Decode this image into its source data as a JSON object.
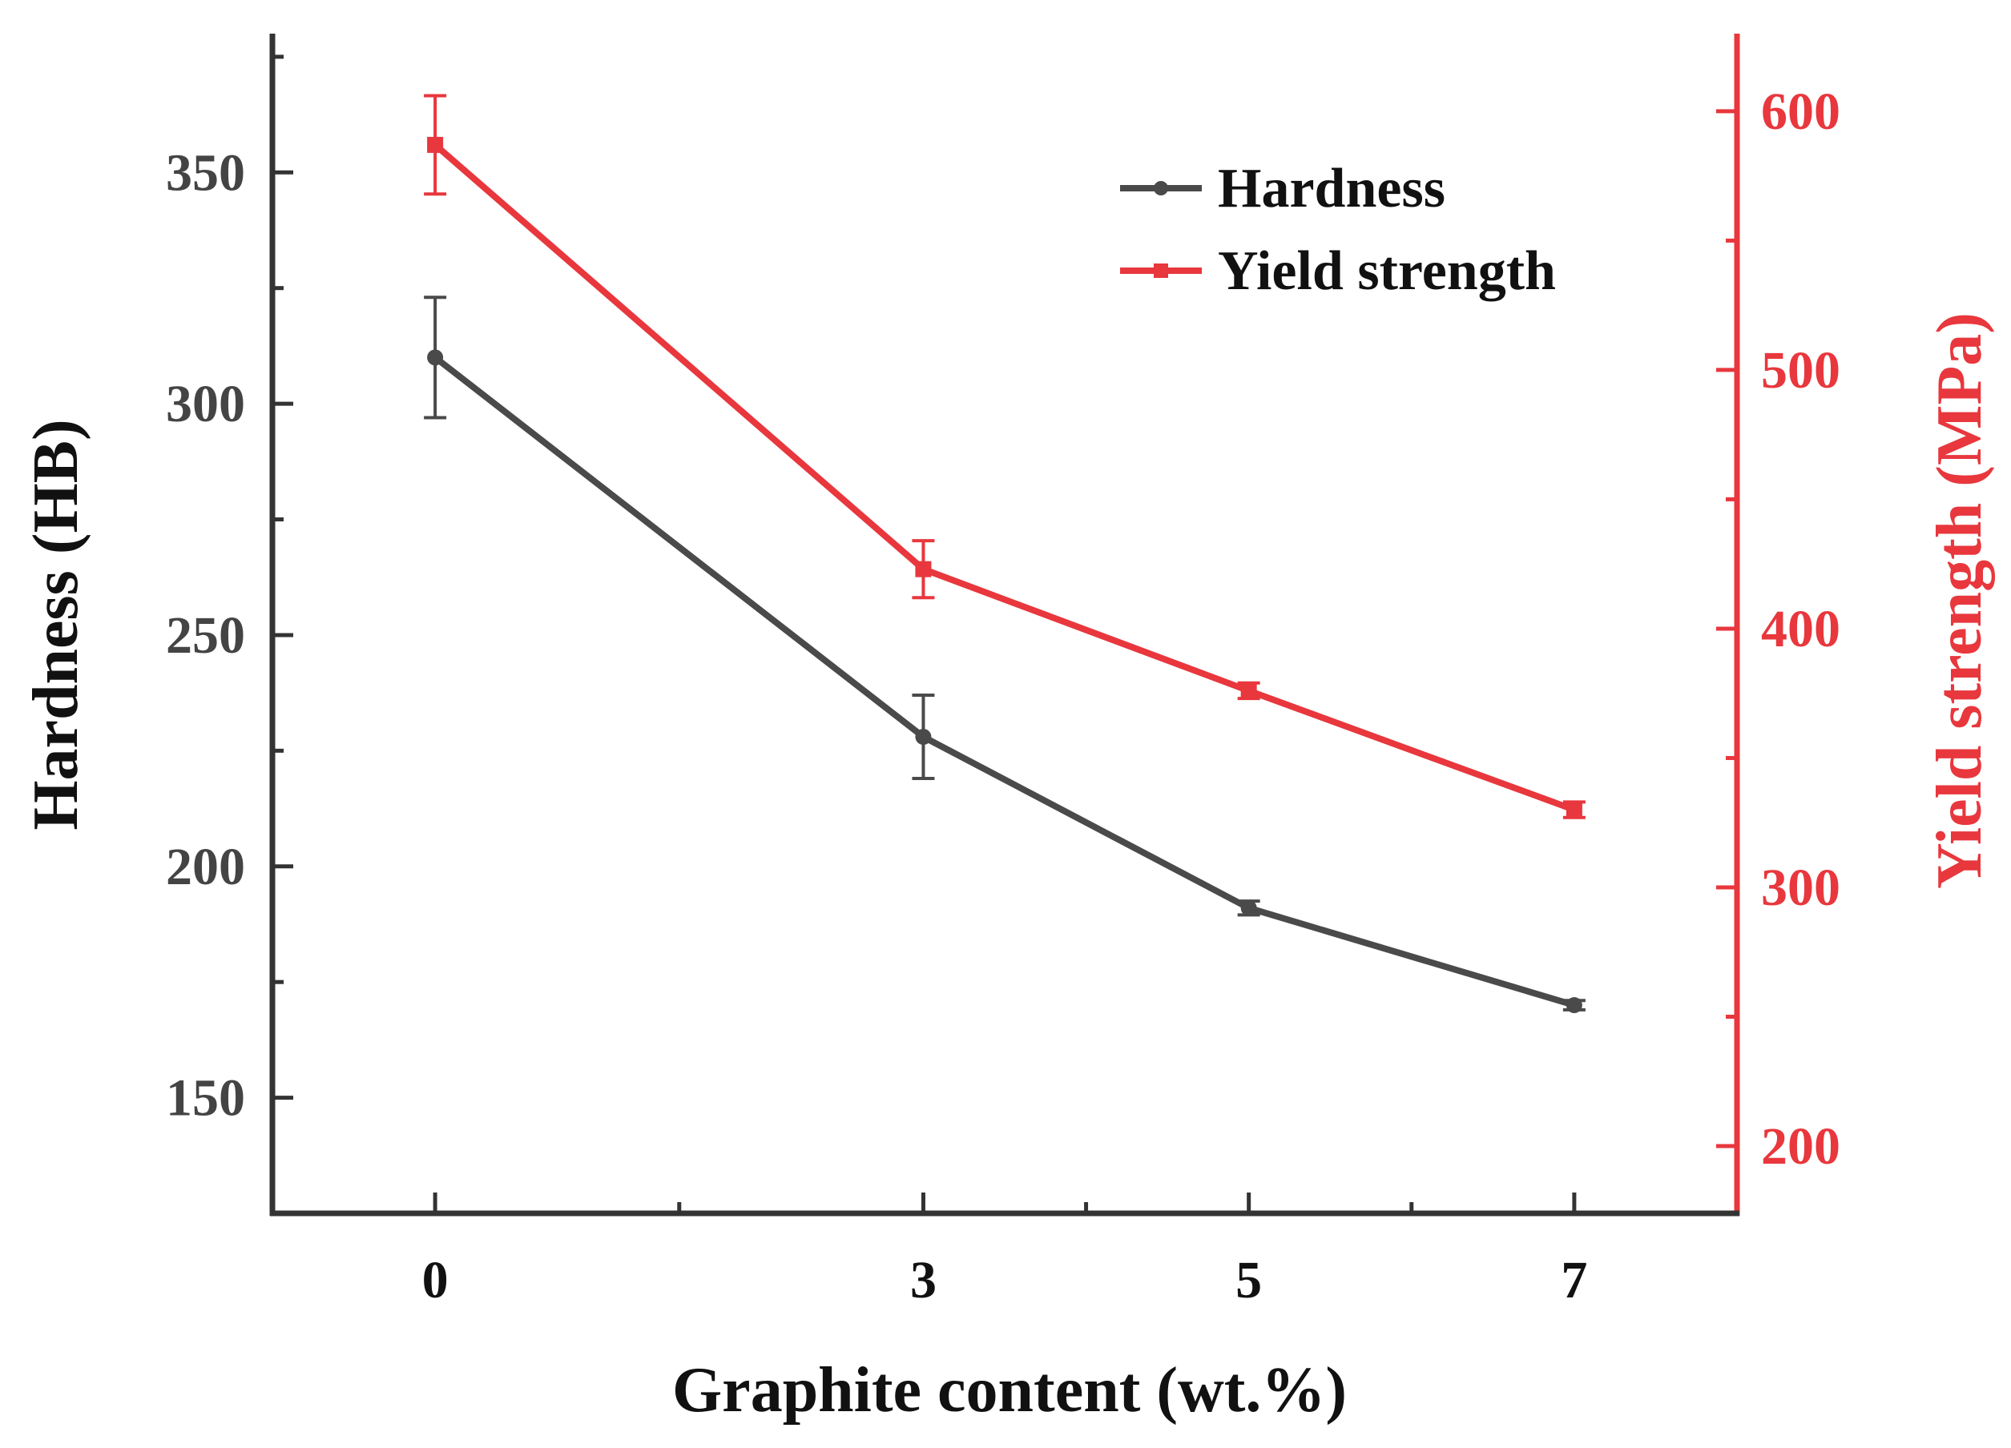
{
  "chart_data": {
    "type": "line",
    "title": "",
    "xlabel": "Graphite content (wt.%)",
    "ylabel": "Hardness (HB)",
    "y2label": "Yield strength (MPa)",
    "categories": [
      "0",
      "3",
      "5",
      "7"
    ],
    "x": [
      0,
      3,
      5,
      7
    ],
    "xlim": [
      -1,
      8
    ],
    "x_minor_ticks": [
      1.5,
      4,
      6
    ],
    "ylim": [
      125,
      380
    ],
    "y_ticks": [
      150,
      200,
      250,
      300,
      350
    ],
    "y_minor_ticks": [
      175,
      225,
      275,
      325,
      375
    ],
    "y2lim": [
      174,
      630
    ],
    "y2_ticks": [
      200,
      300,
      400,
      500,
      600
    ],
    "y2_minor_ticks": [
      250,
      350,
      450,
      550
    ],
    "legend_position": "top-right",
    "grid": false,
    "series": [
      {
        "name": "Hardness",
        "axis": "left",
        "marker": "circle",
        "color": "#4a4a4a",
        "values": [
          310,
          228,
          191,
          170
        ],
        "errors": [
          13,
          9,
          1.5,
          1
        ]
      },
      {
        "name": "Yield strength",
        "axis": "right",
        "marker": "square",
        "color": "#e8373d",
        "values": [
          587,
          423,
          376,
          330
        ],
        "errors": [
          19,
          11,
          3,
          3
        ]
      }
    ]
  }
}
